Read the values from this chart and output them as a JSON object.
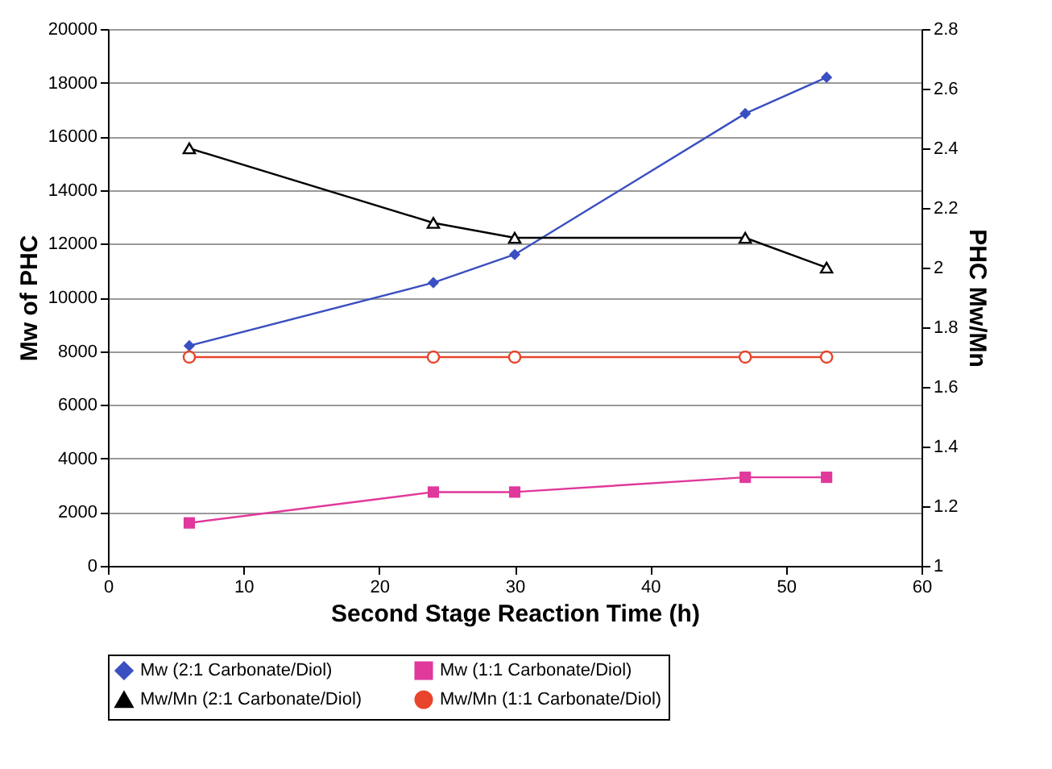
{
  "chart_data": {
    "type": "line",
    "xlabel": "Second Stage Reaction Time (h)",
    "ylabel": "Mw of PHC",
    "y2label": "PHC Mw/Mn",
    "xlim": [
      0,
      60
    ],
    "xticks": [
      0,
      10,
      20,
      30,
      40,
      50,
      60
    ],
    "ylim": [
      0,
      20000
    ],
    "yticks": [
      0,
      2000,
      4000,
      6000,
      8000,
      10000,
      12000,
      14000,
      16000,
      18000,
      20000
    ],
    "y2lim": [
      1,
      2.8
    ],
    "y2ticks": [
      1,
      1.2,
      1.4,
      1.6,
      1.8,
      2,
      2.2,
      2.4,
      2.6,
      2.8
    ],
    "grid": "y",
    "legend": "bottom",
    "x": [
      6,
      24,
      30,
      47,
      53
    ],
    "series": [
      {
        "name": "Mw (2:1 Carbonate/Diol)",
        "color": "#3a4fc1",
        "marker": "diamond",
        "values": [
          8200,
          10550,
          11600,
          16850,
          18200
        ]
      },
      {
        "name": "Mw (1:1 Carbonate/Diol)",
        "color": "#e0389b",
        "marker": "square",
        "values": [
          1600,
          2750,
          2750,
          3300,
          3300
        ]
      },
      {
        "name": "Mw/Mn (2:1 Carbonate/Diol)",
        "color": "#000000",
        "marker": "triangle",
        "axis": "y2",
        "values": [
          2.4,
          2.15,
          2.1,
          2.1,
          2.0
        ]
      },
      {
        "name": "Mw/Mn (1:1 Carbonate/Diol)",
        "color": "#e8452c",
        "marker": "circle",
        "axis": "y2",
        "values": [
          1.7,
          1.7,
          1.7,
          1.7,
          1.7
        ]
      }
    ]
  }
}
